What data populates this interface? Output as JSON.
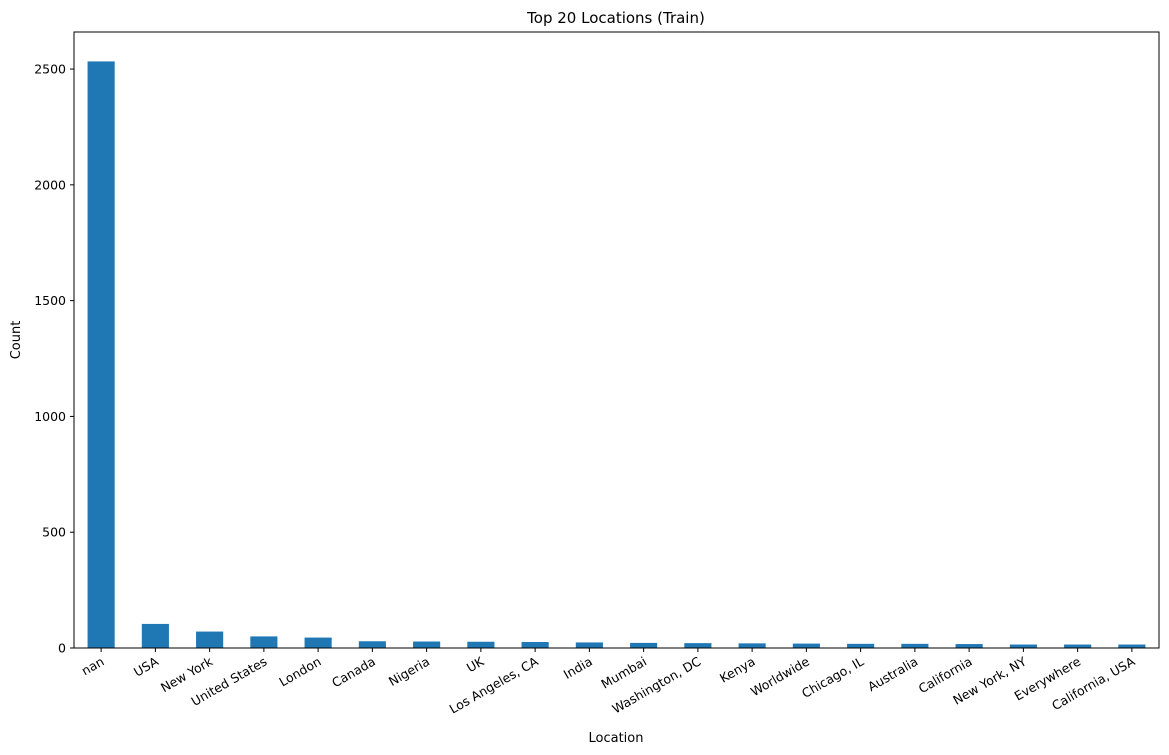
{
  "chart_data": {
    "type": "bar",
    "title": "Top 20 Locations (Train)",
    "xlabel": "Location",
    "ylabel": "Count",
    "categories": [
      "nan",
      "USA",
      "New York",
      "United States",
      "London",
      "Canada",
      "Nigeria",
      "UK",
      "Los Angeles, CA",
      "India",
      "Mumbai",
      "Washington, DC",
      "Kenya",
      "Worldwide",
      "Chicago, IL",
      "Australia",
      "California",
      "New York, NY",
      "Everywhere",
      "California, USA"
    ],
    "values": [
      2533,
      104,
      71,
      50,
      45,
      29,
      28,
      27,
      26,
      24,
      22,
      21,
      20,
      19,
      18,
      18,
      17,
      15,
      15,
      15
    ],
    "ylim": [
      0,
      2660
    ],
    "yticks": [
      0,
      500,
      1000,
      1500,
      2000,
      2500
    ],
    "grid": false,
    "legend": "none",
    "bar_color": "#1f77b4"
  }
}
